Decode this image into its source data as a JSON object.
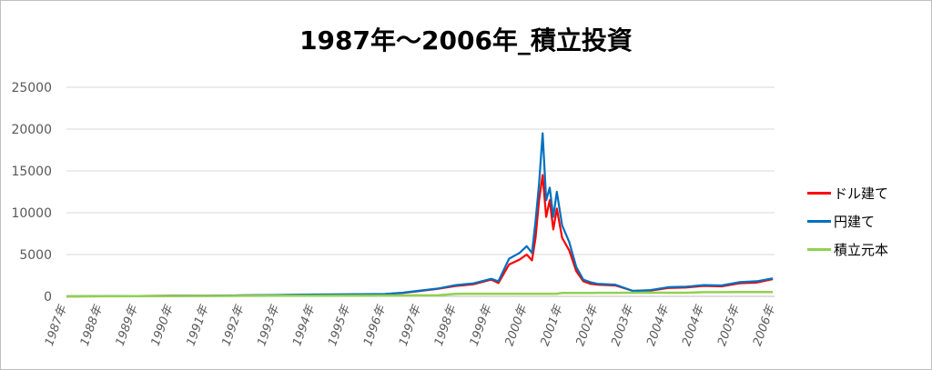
{
  "chart_data": {
    "type": "line",
    "title": "1987年～2006年_積立投資",
    "xlabel": "",
    "ylabel": "",
    "ylim": [
      0,
      25000
    ],
    "y_ticks": [
      "0",
      "5000",
      "10000",
      "15000",
      "20000",
      "25000"
    ],
    "x_tick_labels": [
      "1987年",
      "1988年",
      "1989年",
      "1990年",
      "1991年",
      "1992年",
      "1993年",
      "1994年",
      "1995年",
      "1996年",
      "1997年",
      "1998年",
      "1999年",
      "2000年",
      "2001年",
      "2002年",
      "2003年",
      "2004年",
      "2004年",
      "2005年",
      "2006年"
    ],
    "grid": "horizontal",
    "legend_position": "right",
    "x": [
      1987.0,
      1988.0,
      1989.0,
      1990.0,
      1991.0,
      1992.0,
      1993.0,
      1994.0,
      1995.0,
      1996.0,
      1996.5,
      1997.0,
      1997.5,
      1998.0,
      1998.5,
      1999.0,
      1999.2,
      1999.5,
      1999.8,
      2000.0,
      2000.15,
      2000.25,
      2000.35,
      2000.45,
      2000.55,
      2000.65,
      2000.75,
      2000.85,
      2001.0,
      2001.2,
      2001.4,
      2001.6,
      2001.8,
      2002.0,
      2002.5,
      2003.0,
      2003.5,
      2004.0,
      2004.5,
      2005.0,
      2005.5,
      2006.0,
      2006.5,
      2006.95
    ],
    "series": [
      {
        "name": "ドル建て",
        "color": "#ff0000",
        "values": [
          0,
          10,
          40,
          60,
          70,
          110,
          150,
          200,
          230,
          270,
          400,
          650,
          900,
          1250,
          1450,
          2000,
          1600,
          3800,
          4400,
          5000,
          4300,
          7000,
          11500,
          14500,
          9500,
          11500,
          8000,
          10500,
          7000,
          5500,
          3000,
          1800,
          1500,
          1400,
          1300,
          650,
          700,
          1000,
          1050,
          1250,
          1200,
          1550,
          1650,
          2050
        ]
      },
      {
        "name": "円建て",
        "color": "#0070c0",
        "values": [
          0,
          10,
          45,
          70,
          80,
          120,
          160,
          220,
          250,
          290,
          440,
          700,
          950,
          1350,
          1550,
          2100,
          1800,
          4500,
          5200,
          6000,
          5200,
          9000,
          13500,
          19500,
          11500,
          13000,
          9500,
          12500,
          8500,
          6500,
          3500,
          2000,
          1700,
          1500,
          1400,
          650,
          750,
          1100,
          1150,
          1350,
          1300,
          1700,
          1800,
          2150
        ]
      },
      {
        "name": "積立元本",
        "color": "#92d050",
        "values": [
          0,
          12,
          24,
          36,
          48,
          60,
          72,
          84,
          96,
          108,
          114,
          120,
          126,
          300,
          320,
          320,
          320,
          320,
          320,
          320,
          320,
          320,
          320,
          320,
          320,
          320,
          320,
          320,
          400,
          400,
          400,
          400,
          400,
          420,
          420,
          430,
          430,
          430,
          430,
          500,
          500,
          510,
          510,
          520
        ]
      }
    ]
  }
}
